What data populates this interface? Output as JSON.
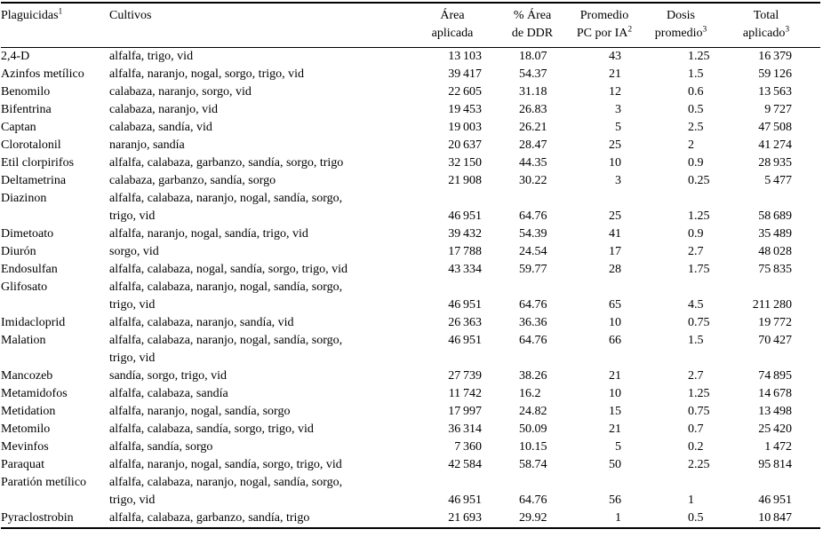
{
  "colors": {
    "text": "#000000",
    "background": "#ffffff",
    "rule": "#000000"
  },
  "table": {
    "headers": {
      "pesticides": {
        "label": "Plaguicidas",
        "sup": "1"
      },
      "crops": {
        "label": "Cultivos"
      },
      "area": {
        "line1": "Área",
        "line2": "aplicada"
      },
      "pct": {
        "line1": "% Área",
        "line2": "de DDR"
      },
      "avg_pc": {
        "line1": "Promedio",
        "line2": "PC por IA",
        "sup": "2"
      },
      "dose": {
        "line1": "Dosis",
        "line2": "promedio",
        "sup": "3"
      },
      "total": {
        "line1": "Total",
        "line2": "aplicado",
        "sup": "3"
      }
    },
    "rows": [
      {
        "pesticide": "2,4-D",
        "crops": "alfalfa, trigo, vid",
        "area": "13 103",
        "pct": "18.07",
        "pc": "43",
        "dose": "1.25",
        "total": "16 379"
      },
      {
        "pesticide": "Azinfos metílico",
        "crops": "alfalfa, naranjo, nogal, sorgo, trigo, vid",
        "area": "39 417",
        "pct": "54.37",
        "pc": "21",
        "dose": "1.5",
        "total": "59 126"
      },
      {
        "pesticide": "Benomilo",
        "crops": "calabaza, naranjo, sorgo, vid",
        "area": "22 605",
        "pct": "31.18",
        "pc": "12",
        "dose": "0.6",
        "total": "13 563"
      },
      {
        "pesticide": "Bifentrina",
        "crops": "calabaza, naranjo, vid",
        "area": "19 453",
        "pct": "26.83",
        "pc": "3",
        "dose": "0.5",
        "total": "9 727"
      },
      {
        "pesticide": "Captan",
        "crops": "calabaza, sandía, vid",
        "area": "19 003",
        "pct": "26.21",
        "pc": "5",
        "dose": "2.5",
        "total": "47 508"
      },
      {
        "pesticide": "Clorotalonil",
        "crops": "naranjo, sandía",
        "area": "20 637",
        "pct": "28.47",
        "pc": "25",
        "dose": "2",
        "total": "41 274"
      },
      {
        "pesticide": "Etil clorpirifos",
        "crops": "alfalfa, calabaza, garbanzo, sandía, sorgo, trigo",
        "area": "32 150",
        "pct": "44.35",
        "pc": "10",
        "dose": "0.9",
        "total": "28 935"
      },
      {
        "pesticide": "Deltametrina",
        "crops": "calabaza, garbanzo, sandía, sorgo",
        "area": "21 908",
        "pct": "30.22",
        "pc": "3",
        "dose": "0.25",
        "total": "5 477"
      },
      {
        "pesticide": "Diazinon",
        "crops": "alfalfa, calabaza, naranjo, nogal, sandía, sorgo,",
        "crops2": "trigo, vid",
        "area": "46 951",
        "pct": "64.76",
        "pc": "25",
        "dose": "1.25",
        "total": "58 689"
      },
      {
        "pesticide": "Dimetoato",
        "crops": "alfalfa, naranjo, nogal, sandía, trigo, vid",
        "area": "39 432",
        "pct": "54.39",
        "pc": "41",
        "dose": "0.9",
        "total": "35 489"
      },
      {
        "pesticide": "Diurón",
        "crops": "sorgo, vid",
        "area": "17 788",
        "pct": "24.54",
        "pc": "17",
        "dose": "2.7",
        "total": "48 028"
      },
      {
        "pesticide": "Endosulfan",
        "crops": "alfalfa, calabaza, nogal, sandía, sorgo, trigo, vid",
        "area": "43 334",
        "pct": "59.77",
        "pc": "28",
        "dose": "1.75",
        "total": "75 835"
      },
      {
        "pesticide": "Glifosato",
        "crops": "alfalfa, calabaza, naranjo, nogal, sandía, sorgo,",
        "crops2": "trigo, vid",
        "area": "46 951",
        "pct": "64.76",
        "pc": "65",
        "dose": "4.5",
        "total": "211 280"
      },
      {
        "pesticide": "Imidacloprid",
        "crops": "alfalfa, calabaza, naranjo, sandía, vid",
        "area": "26 363",
        "pct": "36.36",
        "pc": "10",
        "dose": "0.75",
        "total": "19 772"
      },
      {
        "pesticide": "Malation",
        "crops": "alfalfa, calabaza, naranjo, nogal, sandía, sorgo,",
        "crops2": "trigo, vid",
        "area": "46 951",
        "pct": "64.76",
        "pc": "66",
        "dose": "1.5",
        "total": "70 427"
      },
      {
        "pesticide": "Mancozeb",
        "crops": "sandía, sorgo, trigo, vid",
        "area": "27 739",
        "pct": "38.26",
        "pc": "21",
        "dose": "2.7",
        "total": "74 895"
      },
      {
        "pesticide": "Metamidofos",
        "crops": "alfalfa, calabaza, sandía",
        "area": "11 742",
        "pct": "16.2",
        "pc": "10",
        "dose": "1.25",
        "total": "14 678"
      },
      {
        "pesticide": "Metidation",
        "crops": "alfalfa, naranjo, nogal, sandía, sorgo",
        "area": "17 997",
        "pct": "24.82",
        "pc": "15",
        "dose": "0.75",
        "total": "13 498"
      },
      {
        "pesticide": "Metomilo",
        "crops": "alfalfa, calabaza, sandía, sorgo, trigo, vid",
        "area": "36 314",
        "pct": "50.09",
        "pc": "21",
        "dose": "0.7",
        "total": "25 420"
      },
      {
        "pesticide": "Mevinfos",
        "crops": "alfalfa, sandía, sorgo",
        "area": "7 360",
        "pct": "10.15",
        "pc": "5",
        "dose": "0.2",
        "total": "1 472"
      },
      {
        "pesticide": "Paraquat",
        "crops": "alfalfa, naranjo, nogal, sandía, sorgo, trigo, vid",
        "area": "42 584",
        "pct": "58.74",
        "pc": "50",
        "dose": "2.25",
        "total": "95 814"
      },
      {
        "pesticide": "Paratión metílico",
        "crops": "alfalfa, calabaza, naranjo, nogal, sandía, sorgo,",
        "crops2": "trigo, vid",
        "area": "46 951",
        "pct": "64.76",
        "pc": "56",
        "dose": "1",
        "total": "46 951"
      },
      {
        "pesticide": "Pyraclostrobin",
        "crops": "alfalfa, calabaza, garbanzo, sandía, trigo",
        "area": "21 693",
        "pct": "29.92",
        "pc": "1",
        "dose": "0.5",
        "total": "10 847"
      }
    ]
  }
}
